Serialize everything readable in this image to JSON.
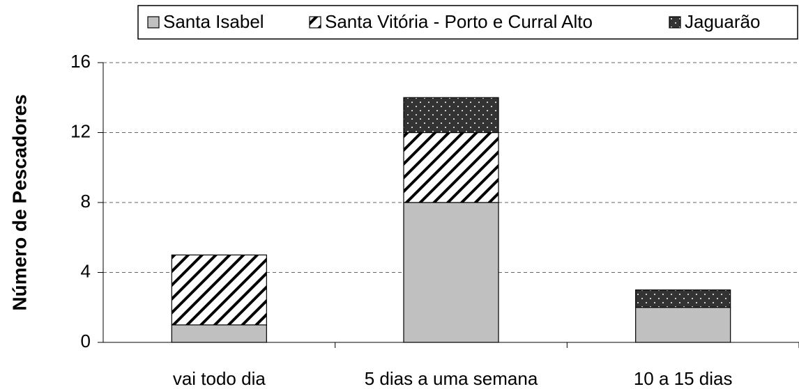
{
  "chart_data": {
    "type": "stacked_bar",
    "y_label": "Número de Pescadores",
    "categories": [
      "vai todo dia",
      "5 dias a uma semana",
      "10 a 15 dias"
    ],
    "series": [
      {
        "name": "Santa Isabel",
        "color": "#c0c0c0",
        "pattern": "solid",
        "values": [
          1,
          8,
          2
        ]
      },
      {
        "name": "Santa Vitória - Porto e Curral Alto",
        "color": "#ffffff",
        "pattern": "hatch",
        "values": [
          4,
          4,
          0
        ]
      },
      {
        "name": "Jaguarão",
        "color": "#333333",
        "pattern": "dots",
        "values": [
          0,
          2,
          1
        ]
      }
    ],
    "ylim": [
      0,
      16
    ],
    "yticks": [
      0,
      4,
      8,
      12,
      16
    ],
    "grid": true,
    "legend": "top"
  }
}
